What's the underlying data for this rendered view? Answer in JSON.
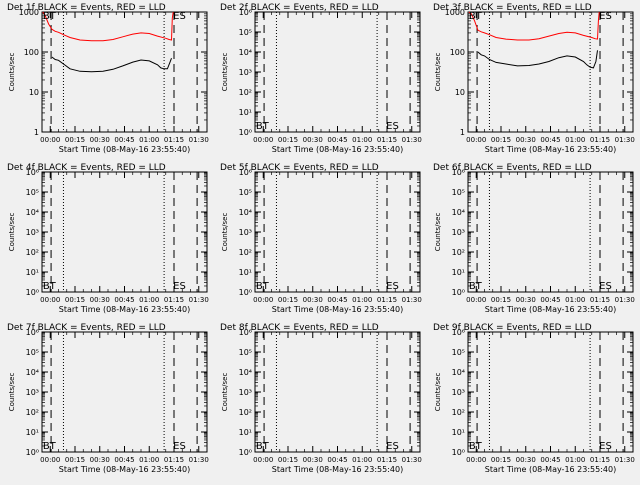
{
  "figure": {
    "xlabel": "Start Time (08-May-16 23:55:40)",
    "ylabel": "Counts/sec",
    "x_ticks": [
      "00:00",
      "00:15",
      "00:30",
      "00:45",
      "01:00",
      "01:15",
      "01:30"
    ],
    "x_tick_minutes": [
      0,
      15,
      30,
      45,
      60,
      75,
      90
    ],
    "colors": {
      "events": "#000000",
      "lld": "#ff0000",
      "background": "#f0f0f0"
    }
  },
  "chart_data": [
    {
      "type": "line",
      "title": "Det 1f BLACK = Events, RED = LLD",
      "y_scale": "log",
      "ylim": [
        1,
        1000
      ],
      "xlim_minutes": [
        -5,
        95
      ],
      "y_ticks": [
        "1",
        "10",
        "100",
        "1000"
      ],
      "y_tick_values": [
        1,
        10,
        100,
        1000
      ],
      "markers": [
        {
          "label": "BT",
          "minutes": -4.5
        },
        {
          "label": "ES",
          "minutes": 74.5
        }
      ],
      "dashed_lines_minutes": [
        0.5,
        75,
        89
      ],
      "dotted_lines_minutes": [
        8,
        69
      ],
      "series": [
        {
          "name": "LLD",
          "color": "#ff0000",
          "x_minutes": [
            -4.5,
            -3,
            -1,
            1,
            3,
            5,
            8,
            12,
            18,
            25,
            32,
            38,
            44,
            50,
            55,
            60,
            65,
            70,
            72,
            73.5,
            74,
            74.5
          ],
          "values": [
            1000,
            800,
            500,
            370,
            330,
            310,
            270,
            230,
            200,
            190,
            190,
            205,
            240,
            280,
            300,
            290,
            250,
            220,
            205,
            200,
            700,
            1000
          ]
        },
        {
          "name": "Events",
          "color": "#000000",
          "x_minutes": [
            1,
            3,
            5,
            8,
            12,
            18,
            25,
            32,
            38,
            44,
            50,
            55,
            60,
            65,
            67,
            69,
            71,
            72.5,
            73.5
          ],
          "values": [
            75,
            65,
            62,
            50,
            38,
            33,
            32,
            33,
            37,
            45,
            56,
            63,
            60,
            48,
            40,
            38,
            38,
            55,
            70
          ]
        }
      ]
    },
    {
      "type": "line",
      "title": "Det 2f BLACK = Events, RED = LLD",
      "y_scale": "log",
      "ylim": [
        1,
        1000000
      ],
      "xlim_minutes": [
        -5,
        95
      ],
      "y_ticks": [
        "10⁰",
        "10¹",
        "10²",
        "10³",
        "10⁴",
        "10⁵",
        "10⁶"
      ],
      "y_tick_values": [
        1,
        10,
        100,
        1000,
        10000,
        100000,
        1000000
      ],
      "markers": [
        {
          "label": "BT",
          "minutes": -4.5
        },
        {
          "label": "ES",
          "minutes": 74.5
        }
      ],
      "dashed_lines_minutes": [
        0.5,
        75,
        89
      ],
      "dotted_lines_minutes": [
        8,
        69
      ],
      "series": []
    },
    {
      "type": "line",
      "title": "Det 3f BLACK = Events, RED = LLD",
      "y_scale": "log",
      "ylim": [
        1,
        1000
      ],
      "xlim_minutes": [
        -5,
        95
      ],
      "y_ticks": [
        "1",
        "10",
        "100",
        "1000"
      ],
      "y_tick_values": [
        1,
        10,
        100,
        1000
      ],
      "markers": [
        {
          "label": "BT",
          "minutes": -4.5
        },
        {
          "label": "ES",
          "minutes": 74.5
        }
      ],
      "dashed_lines_minutes": [
        0.5,
        75,
        89
      ],
      "dotted_lines_minutes": [
        8,
        69
      ],
      "series": [
        {
          "name": "LLD",
          "color": "#ff0000",
          "x_minutes": [
            -4.5,
            -3,
            -1,
            1,
            3,
            5,
            8,
            12,
            18,
            25,
            32,
            38,
            44,
            50,
            55,
            60,
            65,
            70,
            72,
            73.5,
            74,
            74.5
          ],
          "values": [
            1000,
            900,
            600,
            350,
            320,
            300,
            270,
            230,
            210,
            200,
            200,
            215,
            250,
            290,
            310,
            300,
            260,
            230,
            215,
            210,
            600,
            1000
          ]
        },
        {
          "name": "Events",
          "color": "#000000",
          "x_minutes": [
            1,
            3,
            5,
            8,
            12,
            18,
            25,
            32,
            38,
            44,
            50,
            55,
            60,
            65,
            67,
            69,
            71,
            72.5,
            73.5
          ],
          "values": [
            100,
            85,
            80,
            65,
            55,
            50,
            45,
            46,
            50,
            58,
            72,
            80,
            75,
            58,
            48,
            42,
            40,
            58,
            110
          ]
        }
      ]
    },
    {
      "type": "line",
      "title": "Det 4f BLACK = Events, RED = LLD",
      "y_scale": "log",
      "ylim": [
        1,
        1000000
      ],
      "xlim_minutes": [
        -5,
        95
      ],
      "y_ticks": [
        "10⁰",
        "10¹",
        "10²",
        "10³",
        "10⁴",
        "10⁵",
        "10⁶"
      ],
      "y_tick_values": [
        1,
        10,
        100,
        1000,
        10000,
        100000,
        1000000
      ],
      "markers": [
        {
          "label": "BT",
          "minutes": -4.5
        },
        {
          "label": "ES",
          "minutes": 74.5
        }
      ],
      "dashed_lines_minutes": [
        0.5,
        75,
        89
      ],
      "dotted_lines_minutes": [
        8,
        69
      ],
      "series": []
    },
    {
      "type": "line",
      "title": "Det 5f BLACK = Events, RED = LLD",
      "y_scale": "log",
      "ylim": [
        1,
        1000000
      ],
      "xlim_minutes": [
        -5,
        95
      ],
      "y_ticks": [
        "10⁰",
        "10¹",
        "10²",
        "10³",
        "10⁴",
        "10⁵",
        "10⁶"
      ],
      "y_tick_values": [
        1,
        10,
        100,
        1000,
        10000,
        100000,
        1000000
      ],
      "markers": [
        {
          "label": "BT",
          "minutes": -4.5
        },
        {
          "label": "ES",
          "minutes": 74.5
        }
      ],
      "dashed_lines_minutes": [
        0.5,
        75,
        89
      ],
      "dotted_lines_minutes": [
        8,
        69
      ],
      "series": []
    },
    {
      "type": "line",
      "title": "Det 6f BLACK = Events, RED = LLD",
      "y_scale": "log",
      "ylim": [
        1,
        1000000
      ],
      "xlim_minutes": [
        -5,
        95
      ],
      "y_ticks": [
        "10⁰",
        "10¹",
        "10²",
        "10³",
        "10⁴",
        "10⁵",
        "10⁶"
      ],
      "y_tick_values": [
        1,
        10,
        100,
        1000,
        10000,
        100000,
        1000000
      ],
      "markers": [
        {
          "label": "BT",
          "minutes": -4.5
        },
        {
          "label": "ES",
          "minutes": 74.5
        }
      ],
      "dashed_lines_minutes": [
        0.5,
        75,
        89
      ],
      "dotted_lines_minutes": [
        8,
        69
      ],
      "series": []
    },
    {
      "type": "line",
      "title": "Det 7f BLACK = Events, RED = LLD",
      "y_scale": "log",
      "ylim": [
        1,
        1000000
      ],
      "xlim_minutes": [
        -5,
        95
      ],
      "y_ticks": [
        "10⁰",
        "10¹",
        "10²",
        "10³",
        "10⁴",
        "10⁵",
        "10⁶"
      ],
      "y_tick_values": [
        1,
        10,
        100,
        1000,
        10000,
        100000,
        1000000
      ],
      "markers": [
        {
          "label": "BT",
          "minutes": -4.5
        },
        {
          "label": "ES",
          "minutes": 74.5
        }
      ],
      "dashed_lines_minutes": [
        0.5,
        75,
        89
      ],
      "dotted_lines_minutes": [
        8,
        69
      ],
      "series": []
    },
    {
      "type": "line",
      "title": "Det 8f BLACK = Events, RED = LLD",
      "y_scale": "log",
      "ylim": [
        1,
        1000000
      ],
      "xlim_minutes": [
        -5,
        95
      ],
      "y_ticks": [
        "10⁰",
        "10¹",
        "10²",
        "10³",
        "10⁴",
        "10⁵",
        "10⁶"
      ],
      "y_tick_values": [
        1,
        10,
        100,
        1000,
        10000,
        100000,
        1000000
      ],
      "markers": [
        {
          "label": "BT",
          "minutes": -4.5
        },
        {
          "label": "ES",
          "minutes": 74.5
        }
      ],
      "dashed_lines_minutes": [
        0.5,
        75,
        89
      ],
      "dotted_lines_minutes": [
        8,
        69
      ],
      "series": []
    },
    {
      "type": "line",
      "title": "Det 9f BLACK = Events, RED = LLD",
      "y_scale": "log",
      "ylim": [
        1,
        1000000
      ],
      "xlim_minutes": [
        -5,
        95
      ],
      "y_ticks": [
        "10⁰",
        "10¹",
        "10²",
        "10³",
        "10⁴",
        "10⁵",
        "10⁶"
      ],
      "y_tick_values": [
        1,
        10,
        100,
        1000,
        10000,
        100000,
        1000000
      ],
      "markers": [
        {
          "label": "BT",
          "minutes": -4.5
        },
        {
          "label": "ES",
          "minutes": 74.5
        }
      ],
      "dashed_lines_minutes": [
        0.5,
        75,
        89
      ],
      "dotted_lines_minutes": [
        8,
        69
      ],
      "series": []
    }
  ]
}
